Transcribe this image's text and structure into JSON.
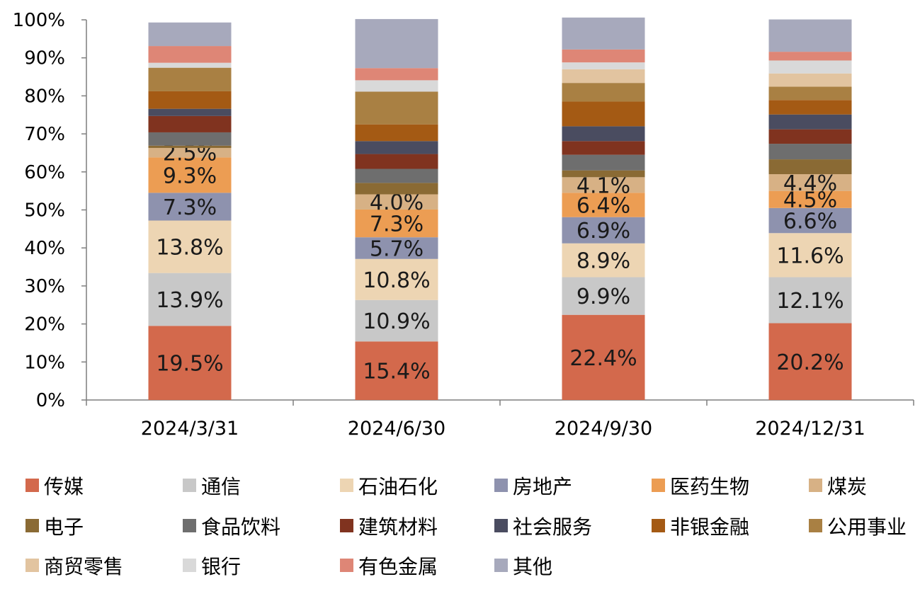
{
  "chart_data": {
    "type": "bar",
    "stacked": true,
    "percent": true,
    "categories": [
      "2024/3/31",
      "2024/6/30",
      "2024/9/30",
      "2024/12/31"
    ],
    "ylim": [
      0,
      100
    ],
    "yticks": [
      "0%",
      "10%",
      "20%",
      "30%",
      "40%",
      "50%",
      "60%",
      "70%",
      "80%",
      "90%",
      "100%"
    ],
    "legend_position": "bottom",
    "series": [
      {
        "name": "传媒",
        "color": "#D3694C",
        "values": [
          19.5,
          15.4,
          22.4,
          20.2
        ],
        "labels": [
          "19.5%",
          "15.4%",
          "22.4%",
          "20.2%"
        ]
      },
      {
        "name": "通信",
        "color": "#C8C8C8",
        "values": [
          13.9,
          10.9,
          9.9,
          12.1
        ],
        "labels": [
          "13.9%",
          "10.9%",
          "9.9%",
          "12.1%"
        ]
      },
      {
        "name": "石油石化",
        "color": "#EDD5B3",
        "values": [
          13.8,
          10.8,
          8.9,
          11.6
        ],
        "labels": [
          "13.8%",
          "10.8%",
          "8.9%",
          "11.6%"
        ]
      },
      {
        "name": "房地产",
        "color": "#8E92AE",
        "values": [
          7.3,
          5.7,
          6.9,
          6.6
        ],
        "labels": [
          "7.3%",
          "5.7%",
          "6.9%",
          "6.6%"
        ]
      },
      {
        "name": "医药生物",
        "color": "#EC9D53",
        "values": [
          9.3,
          7.3,
          6.4,
          4.5
        ],
        "labels": [
          "9.3%",
          "7.3%",
          "6.4%",
          "4.5%"
        ]
      },
      {
        "name": "煤炭",
        "color": "#D7B185",
        "values": [
          2.5,
          4.0,
          4.1,
          4.4
        ],
        "labels": [
          "2.5%",
          "4.0%",
          "4.1%",
          "4.4%"
        ]
      },
      {
        "name": "电子",
        "color": "#8A6A34",
        "values": [
          0.6,
          3.0,
          1.8,
          3.9
        ],
        "labels": [
          "",
          "",
          "",
          ""
        ]
      },
      {
        "name": "食品饮料",
        "color": "#6E6E6E",
        "values": [
          3.5,
          3.7,
          4.1,
          4.1
        ],
        "labels": [
          "",
          "",
          "",
          ""
        ]
      },
      {
        "name": "建筑材料",
        "color": "#80331F",
        "values": [
          4.3,
          3.9,
          3.6,
          3.8
        ],
        "labels": [
          "",
          "",
          "",
          ""
        ]
      },
      {
        "name": "社会服务",
        "color": "#4A4C60",
        "values": [
          1.9,
          3.4,
          3.9,
          3.9
        ],
        "labels": [
          "",
          "",
          "",
          ""
        ]
      },
      {
        "name": "非银金融",
        "color": "#A45A14",
        "values": [
          4.6,
          4.4,
          6.5,
          3.8
        ],
        "labels": [
          "",
          "",
          "",
          ""
        ]
      },
      {
        "name": "公用事业",
        "color": "#A98043",
        "values": [
          6.2,
          8.6,
          4.9,
          3.5
        ],
        "labels": [
          "",
          "",
          "",
          ""
        ]
      },
      {
        "name": "商贸零售",
        "color": "#E2C4A0",
        "values": [
          0,
          0,
          3.6,
          3.5
        ],
        "labels": [
          "",
          "",
          "",
          ""
        ]
      },
      {
        "name": "银行",
        "color": "#D9D9D9",
        "values": [
          1.3,
          3.0,
          1.8,
          3.4
        ],
        "labels": [
          "",
          "",
          "",
          ""
        ]
      },
      {
        "name": "有色金属",
        "color": "#DE8676",
        "values": [
          4.4,
          3.2,
          3.4,
          2.3
        ],
        "labels": [
          "",
          "",
          "",
          ""
        ]
      },
      {
        "name": "其他",
        "color": "#A7A9BC",
        "values": [
          6.2,
          12.9,
          8.4,
          8.5
        ],
        "labels": [
          "",
          "",
          "",
          ""
        ]
      }
    ]
  }
}
